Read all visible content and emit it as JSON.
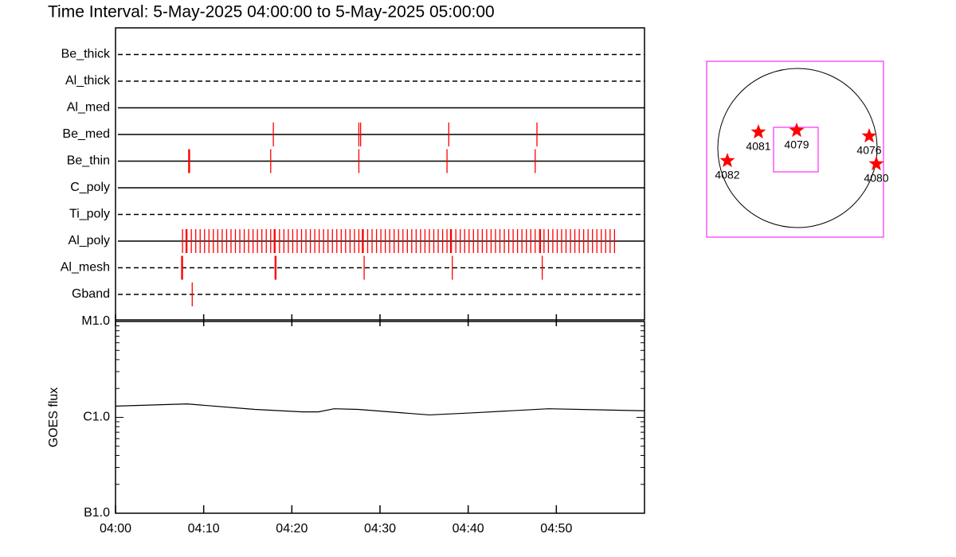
{
  "title": "Time Interval:  5-May-2025 04:00:00 to  5-May-2025 05:00:00",
  "chart_data": [
    {
      "type": "timeline",
      "color": "#ff0000",
      "xlim": [
        0,
        60
      ],
      "series": [
        {
          "name": "Be_thick",
          "dashed": true,
          "values": []
        },
        {
          "name": "Al_thick",
          "dashed": true,
          "values": []
        },
        {
          "name": "Al_med",
          "dashed": false,
          "values": []
        },
        {
          "name": "Be_med",
          "dashed": false,
          "values": [
            17.9,
            27.6,
            27.8,
            37.8,
            47.8
          ]
        },
        {
          "name": "Be_thin",
          "dashed": false,
          "values": [
            8.3,
            8.4,
            17.6,
            27.6,
            37.6,
            47.6
          ]
        },
        {
          "name": "C_poly",
          "dashed": false,
          "values": []
        },
        {
          "name": "Ti_poly",
          "dashed": true,
          "values": []
        },
        {
          "name": "Al_poly",
          "dashed": false,
          "values": [
            7.6,
            8.0,
            8.1,
            8.6,
            9.1,
            9.6,
            10.1,
            10.6,
            11.1,
            11.6,
            12.1,
            12.6,
            13.1,
            13.6,
            14.1,
            14.6,
            15.1,
            15.6,
            16.1,
            16.6,
            17.1,
            17.6,
            18.0,
            18.1,
            18.6,
            19.1,
            19.6,
            20.1,
            20.6,
            21.1,
            21.6,
            22.1,
            22.6,
            23.1,
            23.6,
            24.1,
            24.6,
            25.1,
            25.6,
            26.1,
            26.6,
            27.1,
            27.6,
            28.0,
            28.1,
            28.6,
            29.1,
            29.6,
            30.1,
            30.6,
            31.1,
            31.6,
            32.1,
            32.6,
            33.1,
            33.6,
            34.1,
            34.6,
            35.1,
            35.6,
            36.1,
            36.6,
            37.1,
            37.6,
            38.0,
            38.1,
            38.6,
            39.1,
            39.6,
            40.1,
            40.6,
            41.1,
            41.6,
            42.1,
            42.6,
            43.1,
            43.6,
            44.1,
            44.6,
            45.1,
            45.6,
            46.1,
            46.6,
            47.1,
            47.6,
            48.1,
            48.2,
            48.6,
            49.1,
            49.6,
            50.1,
            50.6,
            51.1,
            51.6,
            52.1,
            52.6,
            53.1,
            53.6,
            54.1,
            54.6,
            55.1,
            55.6,
            56.1,
            56.6
          ]
        },
        {
          "name": "Al_mesh",
          "dashed": true,
          "values": [
            7.5,
            7.6,
            18.1,
            18.2,
            28.2,
            38.2,
            48.4
          ]
        },
        {
          "name": "Gband",
          "dashed": true,
          "values": [
            8.7
          ]
        }
      ]
    },
    {
      "type": "line",
      "ylabel": "GOES flux",
      "log_scale": true,
      "color": "#000000",
      "xlim": [
        0,
        60
      ],
      "xticks": [
        {
          "value": 0,
          "label": "04:00"
        },
        {
          "value": 10,
          "label": "04:10"
        },
        {
          "value": 20,
          "label": "04:20"
        },
        {
          "value": 30,
          "label": "04:30"
        },
        {
          "value": 40,
          "label": "04:40"
        },
        {
          "value": 50,
          "label": "04:50"
        }
      ],
      "ylim": [
        1e-07,
        1e-05
      ],
      "yticks": [
        {
          "value": 1e-07,
          "label": "B1.0"
        },
        {
          "value": 1e-06,
          "label": "C1.0"
        },
        {
          "value": 1e-05,
          "label": "M1.0"
        }
      ],
      "x": [
        0,
        8.1,
        15.8,
        21.2,
        23.0,
        24.8,
        27.5,
        35.6,
        41.0,
        49.1,
        60
      ],
      "values": [
        1.31e-06,
        1.38e-06,
        1.21e-06,
        1.14e-06,
        1.14e-06,
        1.23e-06,
        1.21e-06,
        1.06e-06,
        1.12e-06,
        1.23e-06,
        1.17e-06
      ]
    },
    {
      "type": "map",
      "box_color": "#ff00ff",
      "marker_color": "#ff0000",
      "labels": [
        "4081",
        "4079",
        "4076",
        "4082",
        "4080"
      ]
    }
  ]
}
